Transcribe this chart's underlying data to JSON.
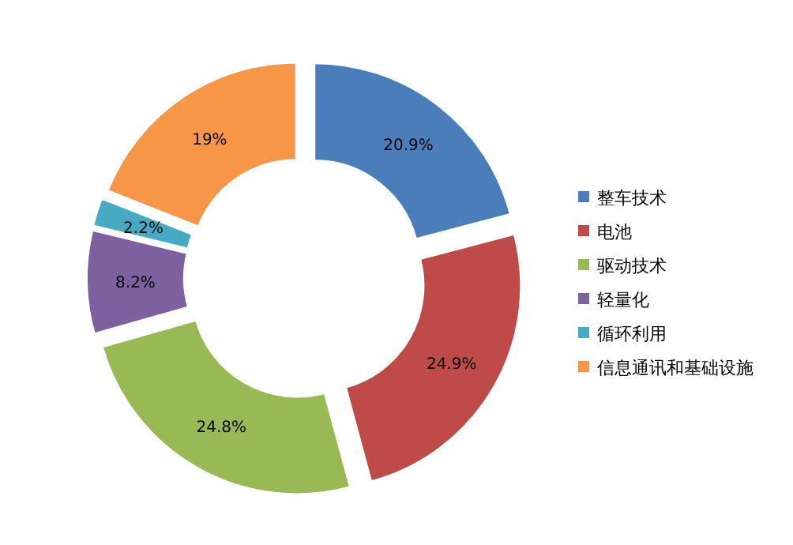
{
  "chart_data": {
    "type": "donut",
    "categories": [
      "整车技术",
      "电池",
      "驱动技术",
      "轻量化",
      "循环利用",
      "信息通讯和基础设施"
    ],
    "values": [
      20.9,
      24.9,
      24.8,
      8.2,
      2.2,
      19
    ],
    "colors": [
      "#4a7ebb",
      "#be4b48",
      "#98b954",
      "#7d60a0",
      "#46aac5",
      "#f79646"
    ],
    "value_labels": [
      "20.9%",
      "24.9%",
      "24.8%",
      "8.2%",
      "2.2%",
      "19%"
    ],
    "legend": "right"
  }
}
